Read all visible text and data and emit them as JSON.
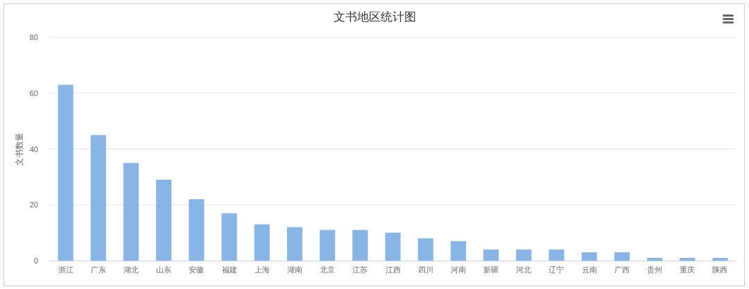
{
  "chart_data": {
    "type": "bar",
    "title": "文书地区统计图",
    "ylabel": "文书数量",
    "categories": [
      "浙江",
      "广东",
      "湖北",
      "山东",
      "安徽",
      "福建",
      "上海",
      "湖南",
      "北京",
      "江苏",
      "江西",
      "四川",
      "河南",
      "新疆",
      "河北",
      "辽宁",
      "云南",
      "广西",
      "贵州",
      "重庆",
      "陕西"
    ],
    "values": [
      63,
      45,
      35,
      29,
      22,
      17,
      13,
      12,
      11,
      11,
      10,
      8,
      7,
      4,
      4,
      4,
      3,
      3,
      1,
      1,
      1
    ],
    "color": "#88b4e6",
    "ylim": [
      0,
      80
    ],
    "yticks": [
      0,
      20,
      40,
      60,
      80
    ],
    "grid": "y"
  }
}
